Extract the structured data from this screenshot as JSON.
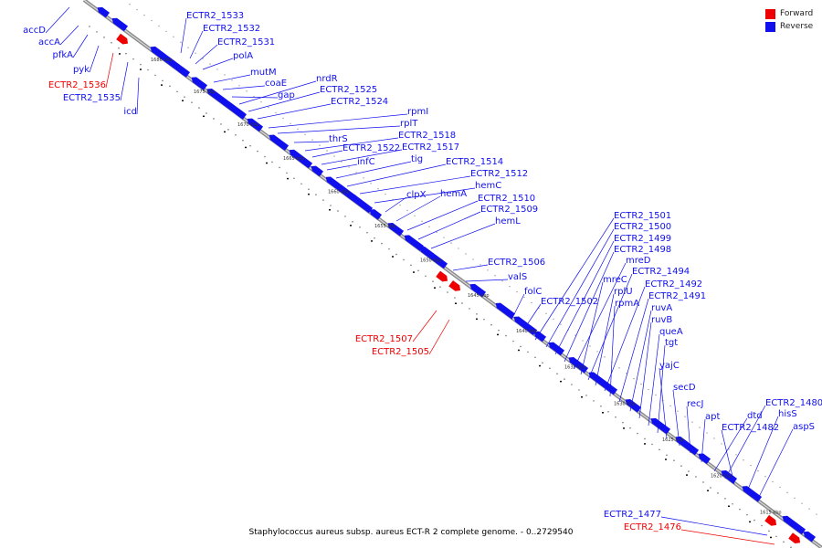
{
  "legend": {
    "forward_label": "Forward",
    "reverse_label": "Reverse",
    "forward_color": "#ee0000",
    "reverse_color": "#1010ee"
  },
  "caption": "Staphylococcus aureus subsp. aureus ECT-R 2 complete genome. - 0..2729540",
  "colors": {
    "forward": "#ee0000",
    "reverse": "#1010ee",
    "backbone": "#888888"
  },
  "kbp_ticks": [
    "1686 kbp",
    "1675 kbp",
    "1670 kbp",
    "1665 kbp",
    "1660 kbp",
    "1655 kbp",
    "1650 kbp",
    "1645 kbp",
    "1640 kbp",
    "1635 kbp",
    "1630 kbp",
    "1625 kbp",
    "1620 kbp",
    "1615 kbp"
  ],
  "genes_left": [
    {
      "name": "accD",
      "strand": "reverse"
    },
    {
      "name": "accA",
      "strand": "reverse"
    },
    {
      "name": "pfkA",
      "strand": "reverse"
    },
    {
      "name": "pyk",
      "strand": "reverse"
    },
    {
      "name": "ECTR2_1536",
      "strand": "forward"
    },
    {
      "name": "ECTR2_1535",
      "strand": "reverse"
    },
    {
      "name": "icd",
      "strand": "reverse"
    },
    {
      "name": "ECTR2_1507",
      "strand": "forward"
    },
    {
      "name": "ECTR2_1505",
      "strand": "forward"
    },
    {
      "name": "ECTR2_1477",
      "strand": "reverse"
    },
    {
      "name": "ECTR2_1476",
      "strand": "forward"
    }
  ],
  "genes_right": [
    {
      "name": "ECTR2_1533",
      "strand": "reverse"
    },
    {
      "name": "ECTR2_1532",
      "strand": "reverse"
    },
    {
      "name": "ECTR2_1531",
      "strand": "reverse"
    },
    {
      "name": "polA",
      "strand": "reverse"
    },
    {
      "name": "mutM",
      "strand": "reverse"
    },
    {
      "name": "coaE",
      "strand": "reverse"
    },
    {
      "name": "gap",
      "strand": "reverse"
    },
    {
      "name": "nrdR",
      "strand": "reverse"
    },
    {
      "name": "ECTR2_1525",
      "strand": "reverse"
    },
    {
      "name": "ECTR2_1524",
      "strand": "reverse"
    },
    {
      "name": "rpmI",
      "strand": "reverse"
    },
    {
      "name": "rplT",
      "strand": "reverse"
    },
    {
      "name": "thrS",
      "strand": "reverse"
    },
    {
      "name": "ECTR2_1518",
      "strand": "reverse"
    },
    {
      "name": "ECTR2_1522",
      "strand": "reverse"
    },
    {
      "name": "ECTR2_1517",
      "strand": "reverse"
    },
    {
      "name": "infC",
      "strand": "reverse"
    },
    {
      "name": "tig",
      "strand": "reverse"
    },
    {
      "name": "ECTR2_1514",
      "strand": "reverse"
    },
    {
      "name": "ECTR2_1512",
      "strand": "reverse"
    },
    {
      "name": "hemC",
      "strand": "reverse"
    },
    {
      "name": "clpX",
      "strand": "reverse"
    },
    {
      "name": "hemA",
      "strand": "reverse"
    },
    {
      "name": "ECTR2_1510",
      "strand": "reverse"
    },
    {
      "name": "ECTR2_1509",
      "strand": "reverse"
    },
    {
      "name": "hemL",
      "strand": "reverse"
    },
    {
      "name": "ECTR2_1506",
      "strand": "reverse"
    },
    {
      "name": "valS",
      "strand": "reverse"
    },
    {
      "name": "folC",
      "strand": "reverse"
    },
    {
      "name": "ECTR2_1502",
      "strand": "reverse"
    },
    {
      "name": "ECTR2_1501",
      "strand": "reverse"
    },
    {
      "name": "ECTR2_1500",
      "strand": "reverse"
    },
    {
      "name": "ECTR2_1499",
      "strand": "reverse"
    },
    {
      "name": "ECTR2_1498",
      "strand": "reverse"
    },
    {
      "name": "mreD",
      "strand": "reverse"
    },
    {
      "name": "mreC",
      "strand": "reverse"
    },
    {
      "name": "ECTR2_1494",
      "strand": "reverse"
    },
    {
      "name": "rplU",
      "strand": "reverse"
    },
    {
      "name": "ECTR2_1492",
      "strand": "reverse"
    },
    {
      "name": "rpmA",
      "strand": "reverse"
    },
    {
      "name": "ECTR2_1491",
      "strand": "reverse"
    },
    {
      "name": "ruvA",
      "strand": "reverse"
    },
    {
      "name": "ruvB",
      "strand": "reverse"
    },
    {
      "name": "queA",
      "strand": "reverse"
    },
    {
      "name": "tgt",
      "strand": "reverse"
    },
    {
      "name": "yajC",
      "strand": "reverse"
    },
    {
      "name": "secD",
      "strand": "reverse"
    },
    {
      "name": "recJ",
      "strand": "reverse"
    },
    {
      "name": "apt",
      "strand": "reverse"
    },
    {
      "name": "dtd",
      "strand": "reverse"
    },
    {
      "name": "ECTR2_1480",
      "strand": "reverse"
    },
    {
      "name": "ECTR2_1482",
      "strand": "reverse"
    },
    {
      "name": "hisS",
      "strand": "reverse"
    },
    {
      "name": "aspS",
      "strand": "reverse"
    }
  ]
}
